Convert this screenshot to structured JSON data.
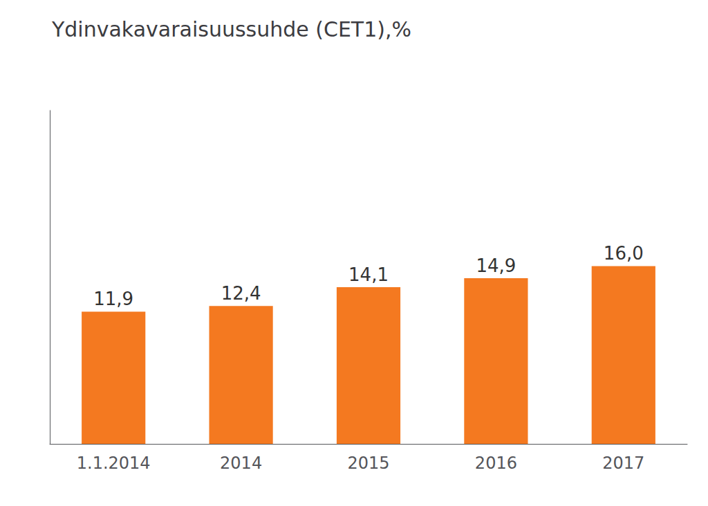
{
  "chart_data": {
    "type": "bar",
    "title": "Ydinvakavaraisuussuhde (CET1),%",
    "categories": [
      "1.1.2014",
      "2014",
      "2015",
      "2016",
      "2017"
    ],
    "values": [
      11.9,
      12.4,
      14.1,
      14.9,
      16.0
    ],
    "value_labels": [
      "11,9",
      "12,4",
      "14,1",
      "14,9",
      "16,0"
    ],
    "color": "#F47920",
    "ylim": [
      0,
      30
    ],
    "yticks": [],
    "grid": false,
    "data_labels": true,
    "tick_labels": "x"
  }
}
